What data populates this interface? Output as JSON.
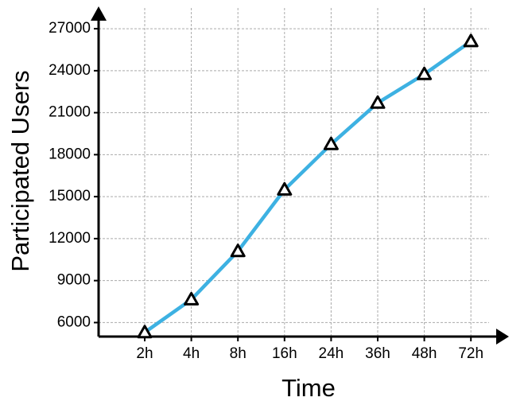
{
  "chart_data": {
    "type": "line",
    "x_label": "Time",
    "y_label": "Participated Users",
    "categories": [
      "2h",
      "4h",
      "8h",
      "16h",
      "24h",
      "36h",
      "48h",
      "72h"
    ],
    "series": [
      {
        "name": "Participated Users",
        "color": "#3db1e2",
        "values": [
          5300,
          7650,
          11100,
          15500,
          18750,
          21700,
          23750,
          26100
        ]
      }
    ],
    "ylim": [
      5000,
      28200
    ],
    "yticks": [
      6000,
      9000,
      12000,
      15000,
      18000,
      21000,
      24000,
      27000
    ],
    "grid": true
  }
}
